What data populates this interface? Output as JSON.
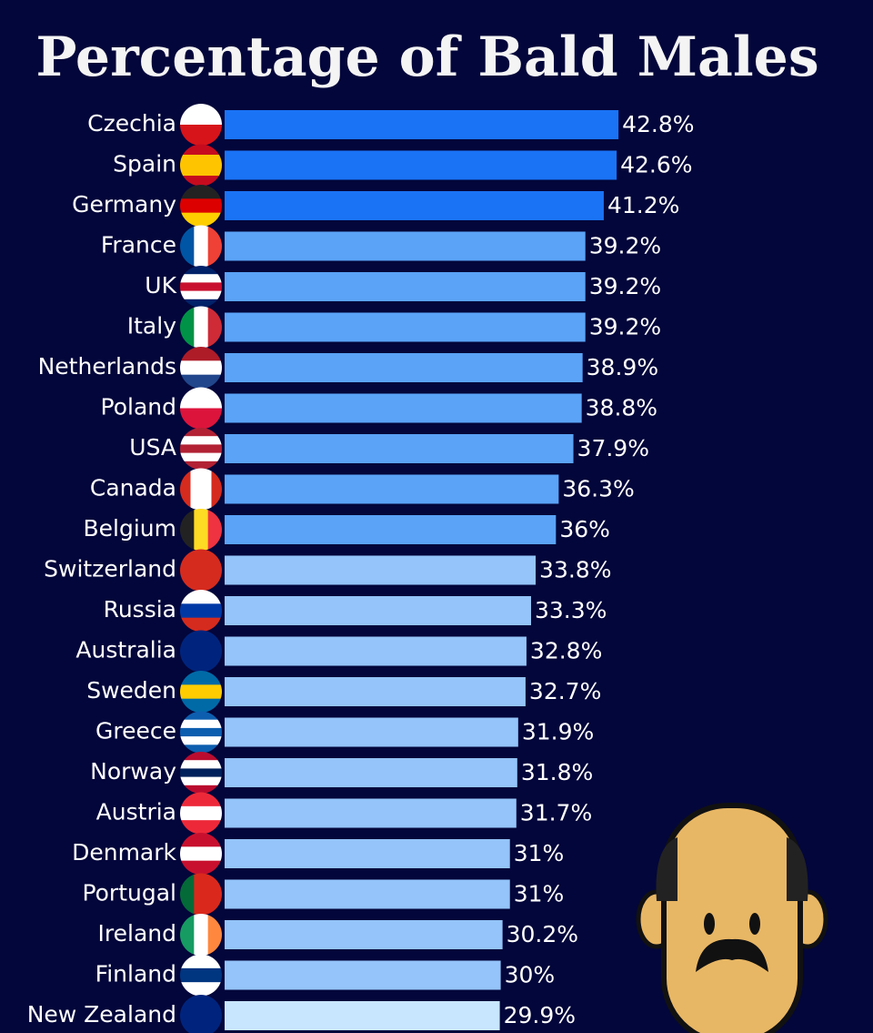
{
  "chart_data": {
    "type": "bar",
    "orientation": "horizontal",
    "title": "Percentage of Bald Males",
    "categories": [
      "Czechia",
      "Spain",
      "Germany",
      "France",
      "UK",
      "Italy",
      "Netherlands",
      "Poland",
      "USA",
      "Canada",
      "Belgium",
      "Switzerland",
      "Russia",
      "Australia",
      "Sweden",
      "Greece",
      "Norway",
      "Austria",
      "Denmark",
      "Portugal",
      "Ireland",
      "Finland",
      "New Zealand"
    ],
    "values": [
      42.8,
      42.6,
      41.2,
      39.2,
      39.2,
      39.2,
      38.9,
      38.8,
      37.9,
      36.3,
      36,
      33.8,
      33.3,
      32.8,
      32.7,
      31.9,
      31.8,
      31.7,
      31,
      31,
      30.2,
      30,
      29.9
    ],
    "value_labels": [
      "42.8%",
      "42.6%",
      "41.2%",
      "39.2%",
      "39.2%",
      "39.2%",
      "38.9%",
      "38.8%",
      "37.9%",
      "36.3%",
      "36%",
      "33.8%",
      "33.3%",
      "32.8%",
      "32.7%",
      "31.9%",
      "31.8%",
      "31.7%",
      "31%",
      "31%",
      "30.2%",
      "30%",
      "29.9%"
    ],
    "colors": [
      "#1a73f5",
      "#1a73f5",
      "#1a73f5",
      "#5aa3f7",
      "#5aa3f7",
      "#5aa3f7",
      "#5aa3f7",
      "#5aa3f7",
      "#5aa3f7",
      "#5aa3f7",
      "#5aa3f7",
      "#94c4f9",
      "#94c4f9",
      "#94c4f9",
      "#94c4f9",
      "#94c4f9",
      "#94c4f9",
      "#94c4f9",
      "#94c4f9",
      "#94c4f9",
      "#94c4f9",
      "#94c4f9",
      "#c9e6ff"
    ]
  }
}
